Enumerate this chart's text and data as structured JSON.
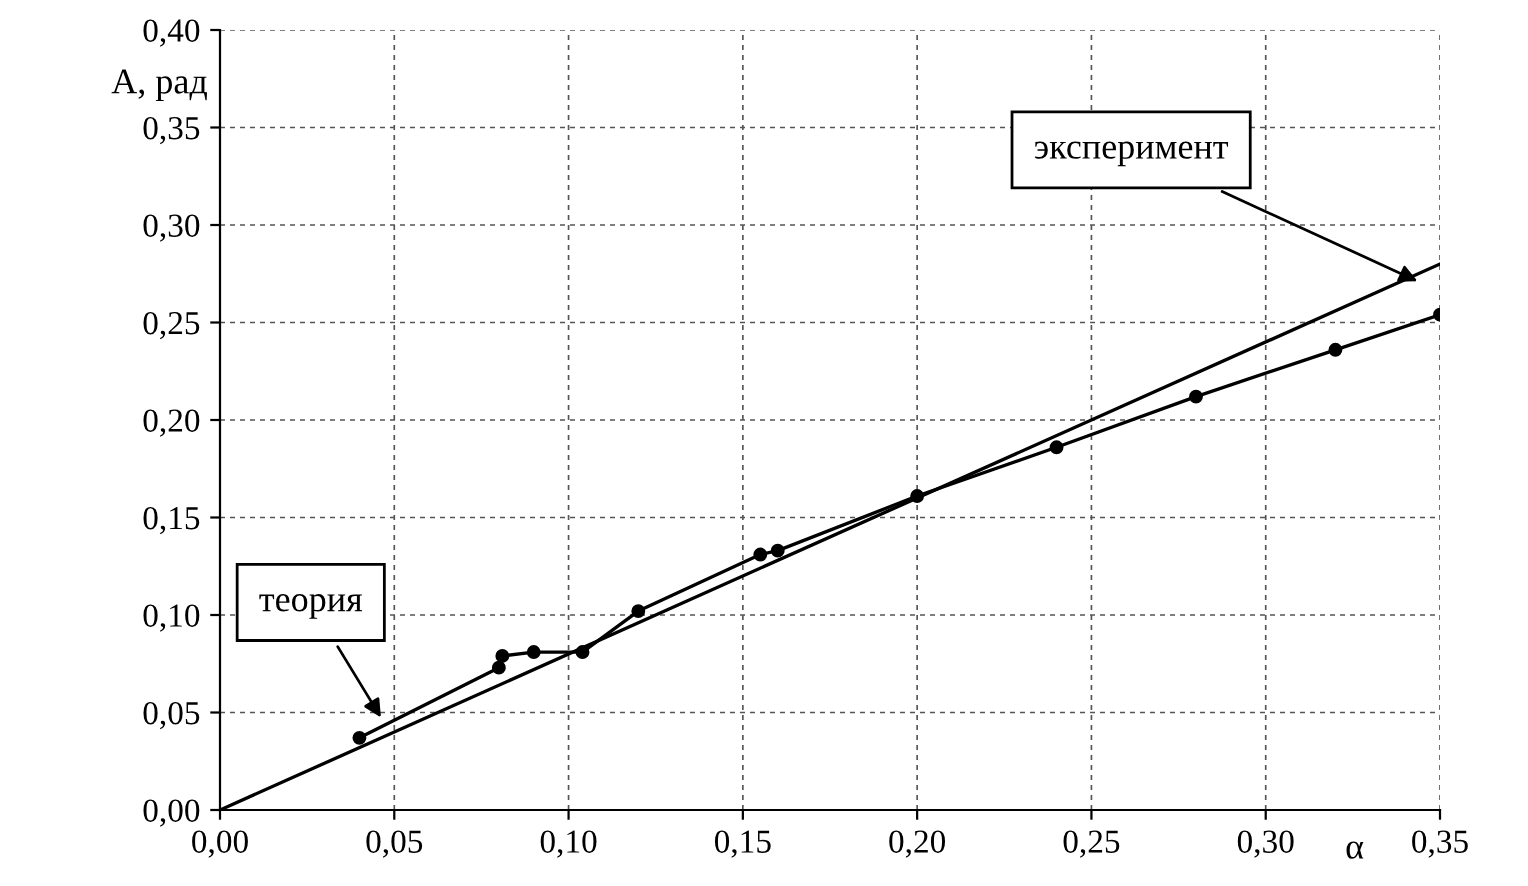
{
  "chart_data": {
    "type": "line",
    "xlabel": "α",
    "ylabel": "А, рад",
    "xlim": [
      0,
      0.35
    ],
    "ylim": [
      0,
      0.4
    ],
    "xticks": [
      {
        "value": 0,
        "label": "0,00"
      },
      {
        "value": 0.05,
        "label": "0,05"
      },
      {
        "value": 0.1,
        "label": "0,10"
      },
      {
        "value": 0.15,
        "label": "0,15"
      },
      {
        "value": 0.2,
        "label": "0,20"
      },
      {
        "value": 0.25,
        "label": "0,25"
      },
      {
        "value": 0.3,
        "label": "0,30"
      },
      {
        "value": 0.35,
        "label": "0,35"
      }
    ],
    "yticks": [
      {
        "value": 0,
        "label": "0,00"
      },
      {
        "value": 0.05,
        "label": "0,05"
      },
      {
        "value": 0.1,
        "label": "0,10"
      },
      {
        "value": 0.15,
        "label": "0,15"
      },
      {
        "value": 0.2,
        "label": "0,20"
      },
      {
        "value": 0.25,
        "label": "0,25"
      },
      {
        "value": 0.3,
        "label": "0,30"
      },
      {
        "value": 0.35,
        "label": "0,35"
      },
      {
        "value": 0.4,
        "label": "0,40"
      }
    ],
    "grid": true,
    "series": [
      {
        "color": "#000000",
        "marker": "none",
        "x": [
          0,
          0.35
        ],
        "values": [
          0,
          0.28
        ]
      },
      {
        "color": "#000000",
        "marker": "circle",
        "x": [
          0.04,
          0.08,
          0.081,
          0.09,
          0.104,
          0.12,
          0.155,
          0.16,
          0.2,
          0.24,
          0.28,
          0.32,
          0.35
        ],
        "values": [
          0.037,
          0.073,
          0.079,
          0.081,
          0.081,
          0.102,
          0.131,
          0.133,
          0.161,
          0.186,
          0.212,
          0.236,
          0.254
        ]
      }
    ],
    "annotations": [
      {
        "text": "теория",
        "x": 0.047,
        "y": 0.045
      },
      {
        "text": "эксперимент",
        "x": 0.345,
        "y": 0.27
      }
    ]
  }
}
